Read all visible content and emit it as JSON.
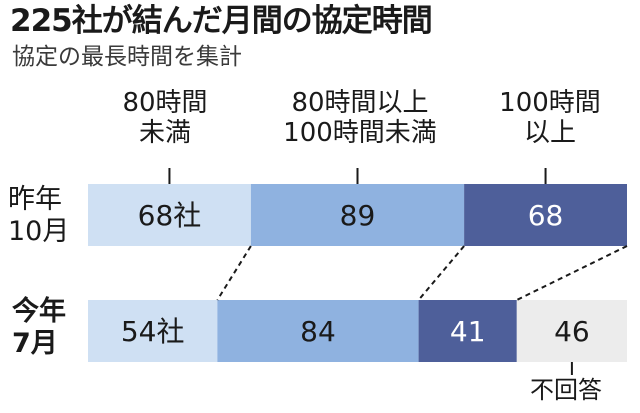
{
  "header": {
    "title": "225社が結んだ月間の協定時間",
    "subtitle": "協定の最長時間を集計"
  },
  "chart_data": {
    "type": "bar",
    "orientation": "horizontal",
    "stacked": true,
    "categories": [
      "80時間\n未満",
      "80時間以上\n100時間未満",
      "100時間\n以上",
      "不回答"
    ],
    "rows": [
      {
        "label": "昨年\n10月",
        "values": [
          68,
          89,
          68,
          null
        ],
        "value_labels": [
          "68社",
          "89",
          "68",
          ""
        ]
      },
      {
        "label": "今年\n7月",
        "values": [
          54,
          84,
          41,
          46
        ],
        "value_labels": [
          "54社",
          "84",
          "41",
          "46"
        ]
      }
    ],
    "colors": [
      "#cfe0f3",
      "#8fb2e0",
      "#4e5f9a",
      "#ececec"
    ],
    "label_colors": [
      "#1a1a1a",
      "#1a1a1a",
      "#ffffff",
      "#1a1a1a"
    ],
    "grid": false
  }
}
